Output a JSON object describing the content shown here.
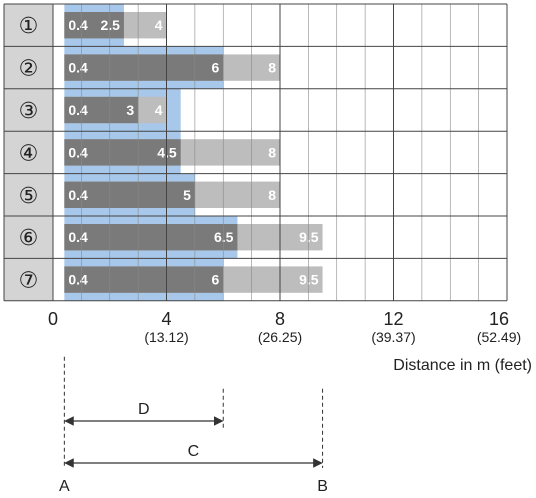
{
  "chart_data": {
    "type": "bar",
    "orientation": "horizontal",
    "categories": [
      "①",
      "②",
      "③",
      "④",
      "⑤",
      "⑥",
      "⑦"
    ],
    "series": [
      {
        "values": [
          2.5,
          6,
          4.5,
          4.5,
          5,
          6.5,
          6
        ]
      },
      {
        "values": [
          2.5,
          6,
          3,
          4.5,
          5,
          6.5,
          6
        ]
      },
      {
        "values": [
          4,
          8,
          4,
          8,
          8,
          9.5,
          9.5
        ]
      }
    ],
    "start": 0.4,
    "start_labels": [
      "0.4",
      "0.4",
      "0.4",
      "0.4",
      "0.4",
      "0.4",
      "0.4"
    ],
    "dark_labels": [
      "2.5",
      "6",
      "3",
      "4.5",
      "5",
      "6.5",
      "6"
    ],
    "light_labels": [
      "4",
      "8",
      "4",
      "8",
      "8",
      "9.5",
      "9.5"
    ],
    "x_ticks": [
      {
        "value": 0,
        "label": "0",
        "sub": ""
      },
      {
        "value": 4,
        "label": "4",
        "sub": "(13.12)"
      },
      {
        "value": 8,
        "label": "8",
        "sub": "(26.25)"
      },
      {
        "value": 12,
        "label": "12",
        "sub": "(39.37)"
      },
      {
        "value": 16,
        "label": "16",
        "sub": "(52.49)"
      }
    ],
    "xlim": [
      0,
      16
    ],
    "xlabel": "Distance in m (feet)",
    "grid": true,
    "colors": {
      "blue": "#a7c8ea",
      "dark": "#7a7a7a",
      "light": "#bdbdbd",
      "row_label_bg": "#d4d4d4",
      "grid": "#444444"
    },
    "dimension": {
      "D_label": "D",
      "D_end": 6,
      "C_label": "C",
      "C_end": 9.5,
      "A_label": "A",
      "B_label": "B"
    }
  }
}
